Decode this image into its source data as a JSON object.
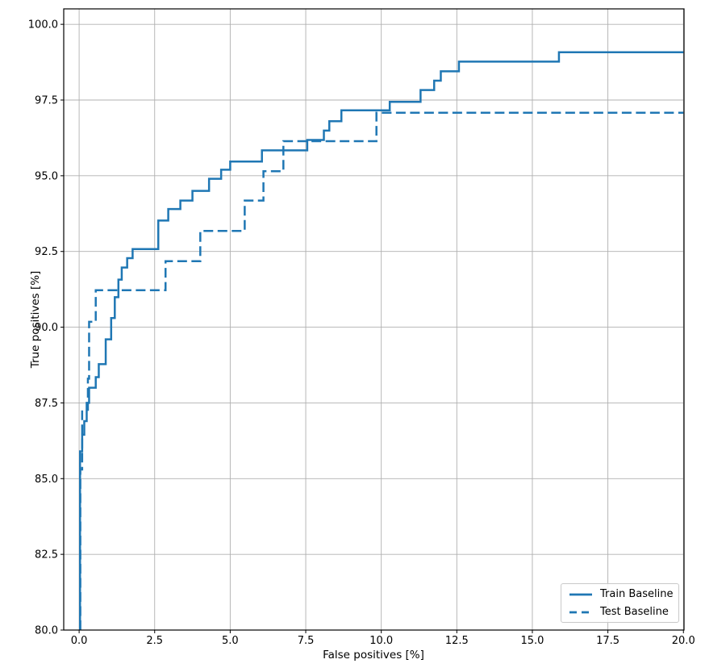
{
  "figure": {
    "background": "#ffffff",
    "line_color": "#1f77b4",
    "grid_color": "#b0b0b0",
    "spine_color": "#000000",
    "text_color": "#000000"
  },
  "chart_data": {
    "type": "line",
    "subtype": "step-roc-curves",
    "title": "",
    "xlabel": "False positives [%]",
    "ylabel": "True positives [%]",
    "xlim": [
      -0.51,
      20.02
    ],
    "ylim": [
      80.0,
      100.51
    ],
    "xticks": [
      0.0,
      2.5,
      5.0,
      7.5,
      10.0,
      12.5,
      15.0,
      17.5,
      20.0
    ],
    "yticks": [
      80.0,
      82.5,
      85.0,
      87.5,
      90.0,
      92.5,
      95.0,
      97.5,
      100.0
    ],
    "grid": true,
    "legend_position": "lower right",
    "series": [
      {
        "name": "Train Baseline",
        "style": "solid",
        "color": "#1f77b4",
        "points": [
          [
            0.03,
            80.0
          ],
          [
            0.03,
            85.9
          ],
          [
            0.1,
            85.9
          ],
          [
            0.1,
            86.45
          ],
          [
            0.17,
            86.45
          ],
          [
            0.17,
            86.9
          ],
          [
            0.25,
            86.9
          ],
          [
            0.25,
            87.5
          ],
          [
            0.33,
            87.5
          ],
          [
            0.33,
            88.0
          ],
          [
            0.55,
            88.0
          ],
          [
            0.55,
            88.35
          ],
          [
            0.65,
            88.35
          ],
          [
            0.65,
            88.78
          ],
          [
            0.88,
            88.78
          ],
          [
            0.88,
            89.6
          ],
          [
            1.06,
            89.6
          ],
          [
            1.06,
            90.3
          ],
          [
            1.18,
            90.3
          ],
          [
            1.18,
            90.99
          ],
          [
            1.3,
            90.99
          ],
          [
            1.3,
            91.57
          ],
          [
            1.41,
            91.57
          ],
          [
            1.41,
            91.97
          ],
          [
            1.59,
            91.97
          ],
          [
            1.59,
            92.28
          ],
          [
            1.77,
            92.28
          ],
          [
            1.77,
            92.58
          ],
          [
            2.62,
            92.58
          ],
          [
            2.62,
            93.52
          ],
          [
            2.95,
            93.52
          ],
          [
            2.95,
            93.9
          ],
          [
            3.35,
            93.9
          ],
          [
            3.35,
            94.18
          ],
          [
            3.75,
            94.18
          ],
          [
            3.75,
            94.5
          ],
          [
            4.3,
            94.5
          ],
          [
            4.3,
            94.9
          ],
          [
            4.7,
            94.9
          ],
          [
            4.7,
            95.2
          ],
          [
            5.0,
            95.2
          ],
          [
            5.0,
            95.47
          ],
          [
            6.05,
            95.47
          ],
          [
            6.05,
            95.84
          ],
          [
            7.55,
            95.84
          ],
          [
            7.55,
            96.18
          ],
          [
            8.1,
            96.18
          ],
          [
            8.1,
            96.49
          ],
          [
            8.28,
            96.49
          ],
          [
            8.28,
            96.8
          ],
          [
            8.68,
            96.8
          ],
          [
            8.68,
            97.16
          ],
          [
            10.28,
            97.16
          ],
          [
            10.28,
            97.44
          ],
          [
            11.3,
            97.44
          ],
          [
            11.3,
            97.83
          ],
          [
            11.75,
            97.83
          ],
          [
            11.75,
            98.14
          ],
          [
            11.97,
            98.14
          ],
          [
            11.97,
            98.45
          ],
          [
            12.57,
            98.45
          ],
          [
            12.57,
            98.77
          ],
          [
            15.88,
            98.77
          ],
          [
            15.88,
            99.08
          ],
          [
            20.0,
            99.08
          ]
        ]
      },
      {
        "name": "Test Baseline",
        "style": "dashed",
        "color": "#1f77b4",
        "points": [
          [
            0.04,
            80.0
          ],
          [
            0.04,
            85.3
          ],
          [
            0.1,
            85.3
          ],
          [
            0.1,
            87.27
          ],
          [
            0.29,
            87.27
          ],
          [
            0.29,
            88.3
          ],
          [
            0.33,
            88.3
          ],
          [
            0.33,
            90.18
          ],
          [
            0.55,
            90.18
          ],
          [
            0.55,
            91.22
          ],
          [
            2.86,
            91.22
          ],
          [
            2.86,
            92.18
          ],
          [
            4.01,
            92.18
          ],
          [
            4.01,
            93.18
          ],
          [
            5.48,
            93.18
          ],
          [
            5.48,
            94.18
          ],
          [
            6.1,
            94.18
          ],
          [
            6.1,
            95.15
          ],
          [
            6.76,
            95.15
          ],
          [
            6.76,
            96.14
          ],
          [
            9.84,
            96.14
          ],
          [
            9.84,
            97.08
          ],
          [
            20.0,
            97.08
          ]
        ]
      }
    ]
  }
}
